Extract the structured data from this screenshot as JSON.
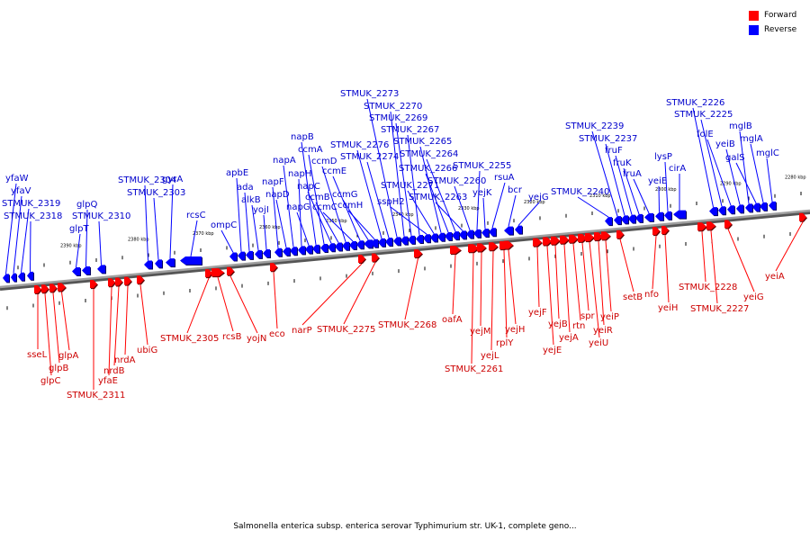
{
  "title": "Salmonella enterica subsp. enterica serovar Typhimurium str. UK-1, complete geno...",
  "legend": [
    {
      "label": "Forward",
      "color": "#ff0000"
    },
    {
      "label": "Reverse",
      "color": "#0000ff"
    }
  ],
  "colors": {
    "forward": "#ff0000",
    "reverse": "#0000ff",
    "forward_label": "#cc0000",
    "reverse_label": "#0000cc",
    "axis": "#808080"
  },
  "ticks": [
    "2390 kbp",
    "2380 kbp",
    "2370 kbp",
    "2360 kbp",
    "2350 kbp",
    "2340 kbp",
    "2330 kbp",
    "2320 kbp",
    "2310 kbp",
    "2300 kbp",
    "2290 kbp",
    "2280 kbp"
  ],
  "reverse_genes": [
    "yfaW",
    "yfaV",
    "STMUK_2319",
    "STMUK_2318",
    "glpT",
    "glpQ",
    "STMUK_2310",
    "STMUK_2304",
    "STMUK_2303",
    "gyrA",
    "rcsC",
    "ompC",
    "apbE",
    "ada",
    "alkB",
    "yojI",
    "napF",
    "napD",
    "napA",
    "napH",
    "napG",
    "napB",
    "ccmA",
    "napC",
    "ccmB",
    "ccmD",
    "ccmC",
    "ccmE",
    "ccmG",
    "ccmH",
    "STMUK_2276",
    "STMUK_2274",
    "STMUK_2273",
    "STMUK_2270",
    "STMUK_2269",
    "STMUK_2267",
    "sspH2",
    "STMUK_2271",
    "STMUK_2265",
    "STMUK_2266",
    "STMUK_2264",
    "STMUK_2263",
    "STMUK_2260",
    "STMUK_2255",
    "yejK",
    "rsuA",
    "bcr",
    "yejG",
    "STMUK_2240",
    "STMUK_2239",
    "STMUK_2237",
    "fruF",
    "fruK",
    "fruA",
    "yeiE",
    "lysP",
    "cirA",
    "STMUK_2226",
    "STMUK_2225",
    "folE",
    "yeiB",
    "mglB",
    "galS",
    "mglA",
    "mglC"
  ],
  "forward_genes": [
    "sseL",
    "glpC",
    "glpB",
    "glpA",
    "STMUK_2311",
    "yfaE",
    "nrdB",
    "nrdA",
    "ubiG",
    "STMUK_2305",
    "rcsB",
    "yojN",
    "eco",
    "narP",
    "STMUK_2275",
    "STMUK_2268",
    "oafA",
    "STMUK_2261",
    "yejM",
    "yejL",
    "rplY",
    "yejH",
    "yejF",
    "yejE",
    "yejB",
    "yejA",
    "rtn",
    "spr",
    "yeiU",
    "yeiR",
    "yeiP",
    "setB",
    "nfo",
    "yeiH",
    "STMUK_2228",
    "STMUK_2227",
    "yeiG",
    "yeiA"
  ]
}
